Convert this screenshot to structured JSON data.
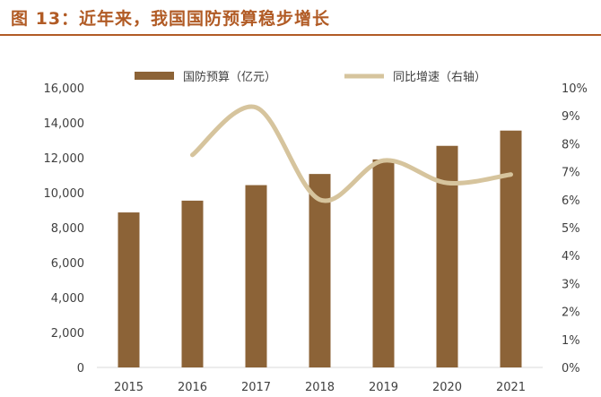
{
  "title": "图 13：近年来，我国国防预算稳步增长",
  "colors": {
    "title": "#b15b25",
    "bar": "#8c6337",
    "line": "#d6c49d",
    "axis_text": "#404040",
    "grid": "#d9d9d9"
  },
  "chart_data": {
    "type": "bar+line",
    "categories": [
      "2015",
      "2016",
      "2017",
      "2018",
      "2019",
      "2020",
      "2021"
    ],
    "series": [
      {
        "name": "国防预算（亿元）",
        "type": "bar",
        "axis": "left",
        "values": [
          8869,
          9544,
          10432,
          11070,
          11899,
          12680,
          13553
        ]
      },
      {
        "name": "同比增速（右轴）",
        "type": "line",
        "axis": "right",
        "smooth": true,
        "values": [
          null,
          7.6,
          9.3,
          6.0,
          7.4,
          6.6,
          6.9
        ]
      }
    ],
    "left_axis": {
      "ylim": [
        0,
        16000
      ],
      "ticks": [
        "0",
        "2,000",
        "4,000",
        "6,000",
        "8,000",
        "10,000",
        "12,000",
        "14,000",
        "16,000"
      ]
    },
    "right_axis": {
      "ylim": [
        0,
        10
      ],
      "ticks": [
        "0%",
        "1%",
        "2%",
        "3%",
        "4%",
        "5%",
        "6%",
        "7%",
        "8%",
        "9%",
        "10%"
      ]
    },
    "legend_position": "top",
    "grid": false
  }
}
